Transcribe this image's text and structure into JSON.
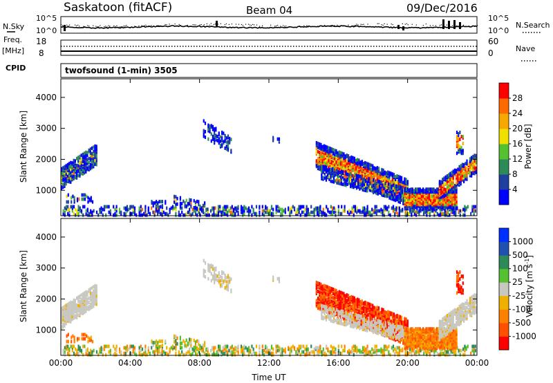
{
  "header": {
    "station": "Saskatoon (fitACF)",
    "beam": "Beam 04",
    "date": "09/Dec/2016"
  },
  "panels": {
    "noise": {
      "left_label": "N.Sky",
      "left_top_tick": "10^5",
      "left_bottom_tick": "10^0",
      "right_top_tick": "10^5",
      "right_bottom_tick": "10^0",
      "right_label": "N.Search"
    },
    "freq": {
      "left_label_line1": "Freq.",
      "left_label_line2": "[MHz]",
      "left_top_tick": "18",
      "left_bottom_tick": "8",
      "right_top_tick": "60",
      "right_bottom_tick": "0",
      "right_label": "Nave"
    },
    "cpid": {
      "left_label": "CPID",
      "text": "twofsound (1-min) 3505"
    }
  },
  "colors": {
    "power": [
      "#0000ff",
      "#2040a0",
      "#2e8b57",
      "#55c030",
      "#f0e000",
      "#f7a800",
      "#ff6a00",
      "#ff0000"
    ],
    "velocity": [
      "#ff0000",
      "#ff5000",
      "#ff8000",
      "#f0b000",
      "#c8c8c0",
      "#55c030",
      "#2e8b57",
      "#2050b0",
      "#0030ff"
    ]
  },
  "chart_data": [
    {
      "type": "heatmap",
      "name": "power",
      "ylabel": "Slant Range [km]",
      "yticks": [
        "1000",
        "2000",
        "3000",
        "4000"
      ],
      "ylim": [
        180,
        4600
      ],
      "xticks": [
        "00:00",
        "04:00",
        "08:00",
        "12:00",
        "16:00",
        "20:00",
        "00:00"
      ],
      "xlim_hours": [
        0,
        24
      ],
      "colorbar": {
        "label": "Power [dB]",
        "ticks": [
          "4",
          "8",
          "12",
          "16",
          "20",
          "24",
          "28"
        ],
        "range": [
          0,
          32
        ]
      }
    },
    {
      "type": "heatmap",
      "name": "velocity",
      "ylabel": "Slant Range [km]",
      "yticks": [
        "1000",
        "2000",
        "3000",
        "4000"
      ],
      "ylim": [
        180,
        4600
      ],
      "xticks": [
        "00:00",
        "04:00",
        "08:00",
        "12:00",
        "16:00",
        "20:00",
        "00:00"
      ],
      "xlabel": "Time UT",
      "xlim_hours": [
        0,
        24
      ],
      "colorbar": {
        "label": "Velocity [m s",
        "label_sup": "-1",
        "label_end": "]",
        "ticks": [
          "1000",
          "500",
          "100",
          "25",
          "-25",
          "-100",
          "-500",
          "-1000"
        ]
      }
    }
  ]
}
